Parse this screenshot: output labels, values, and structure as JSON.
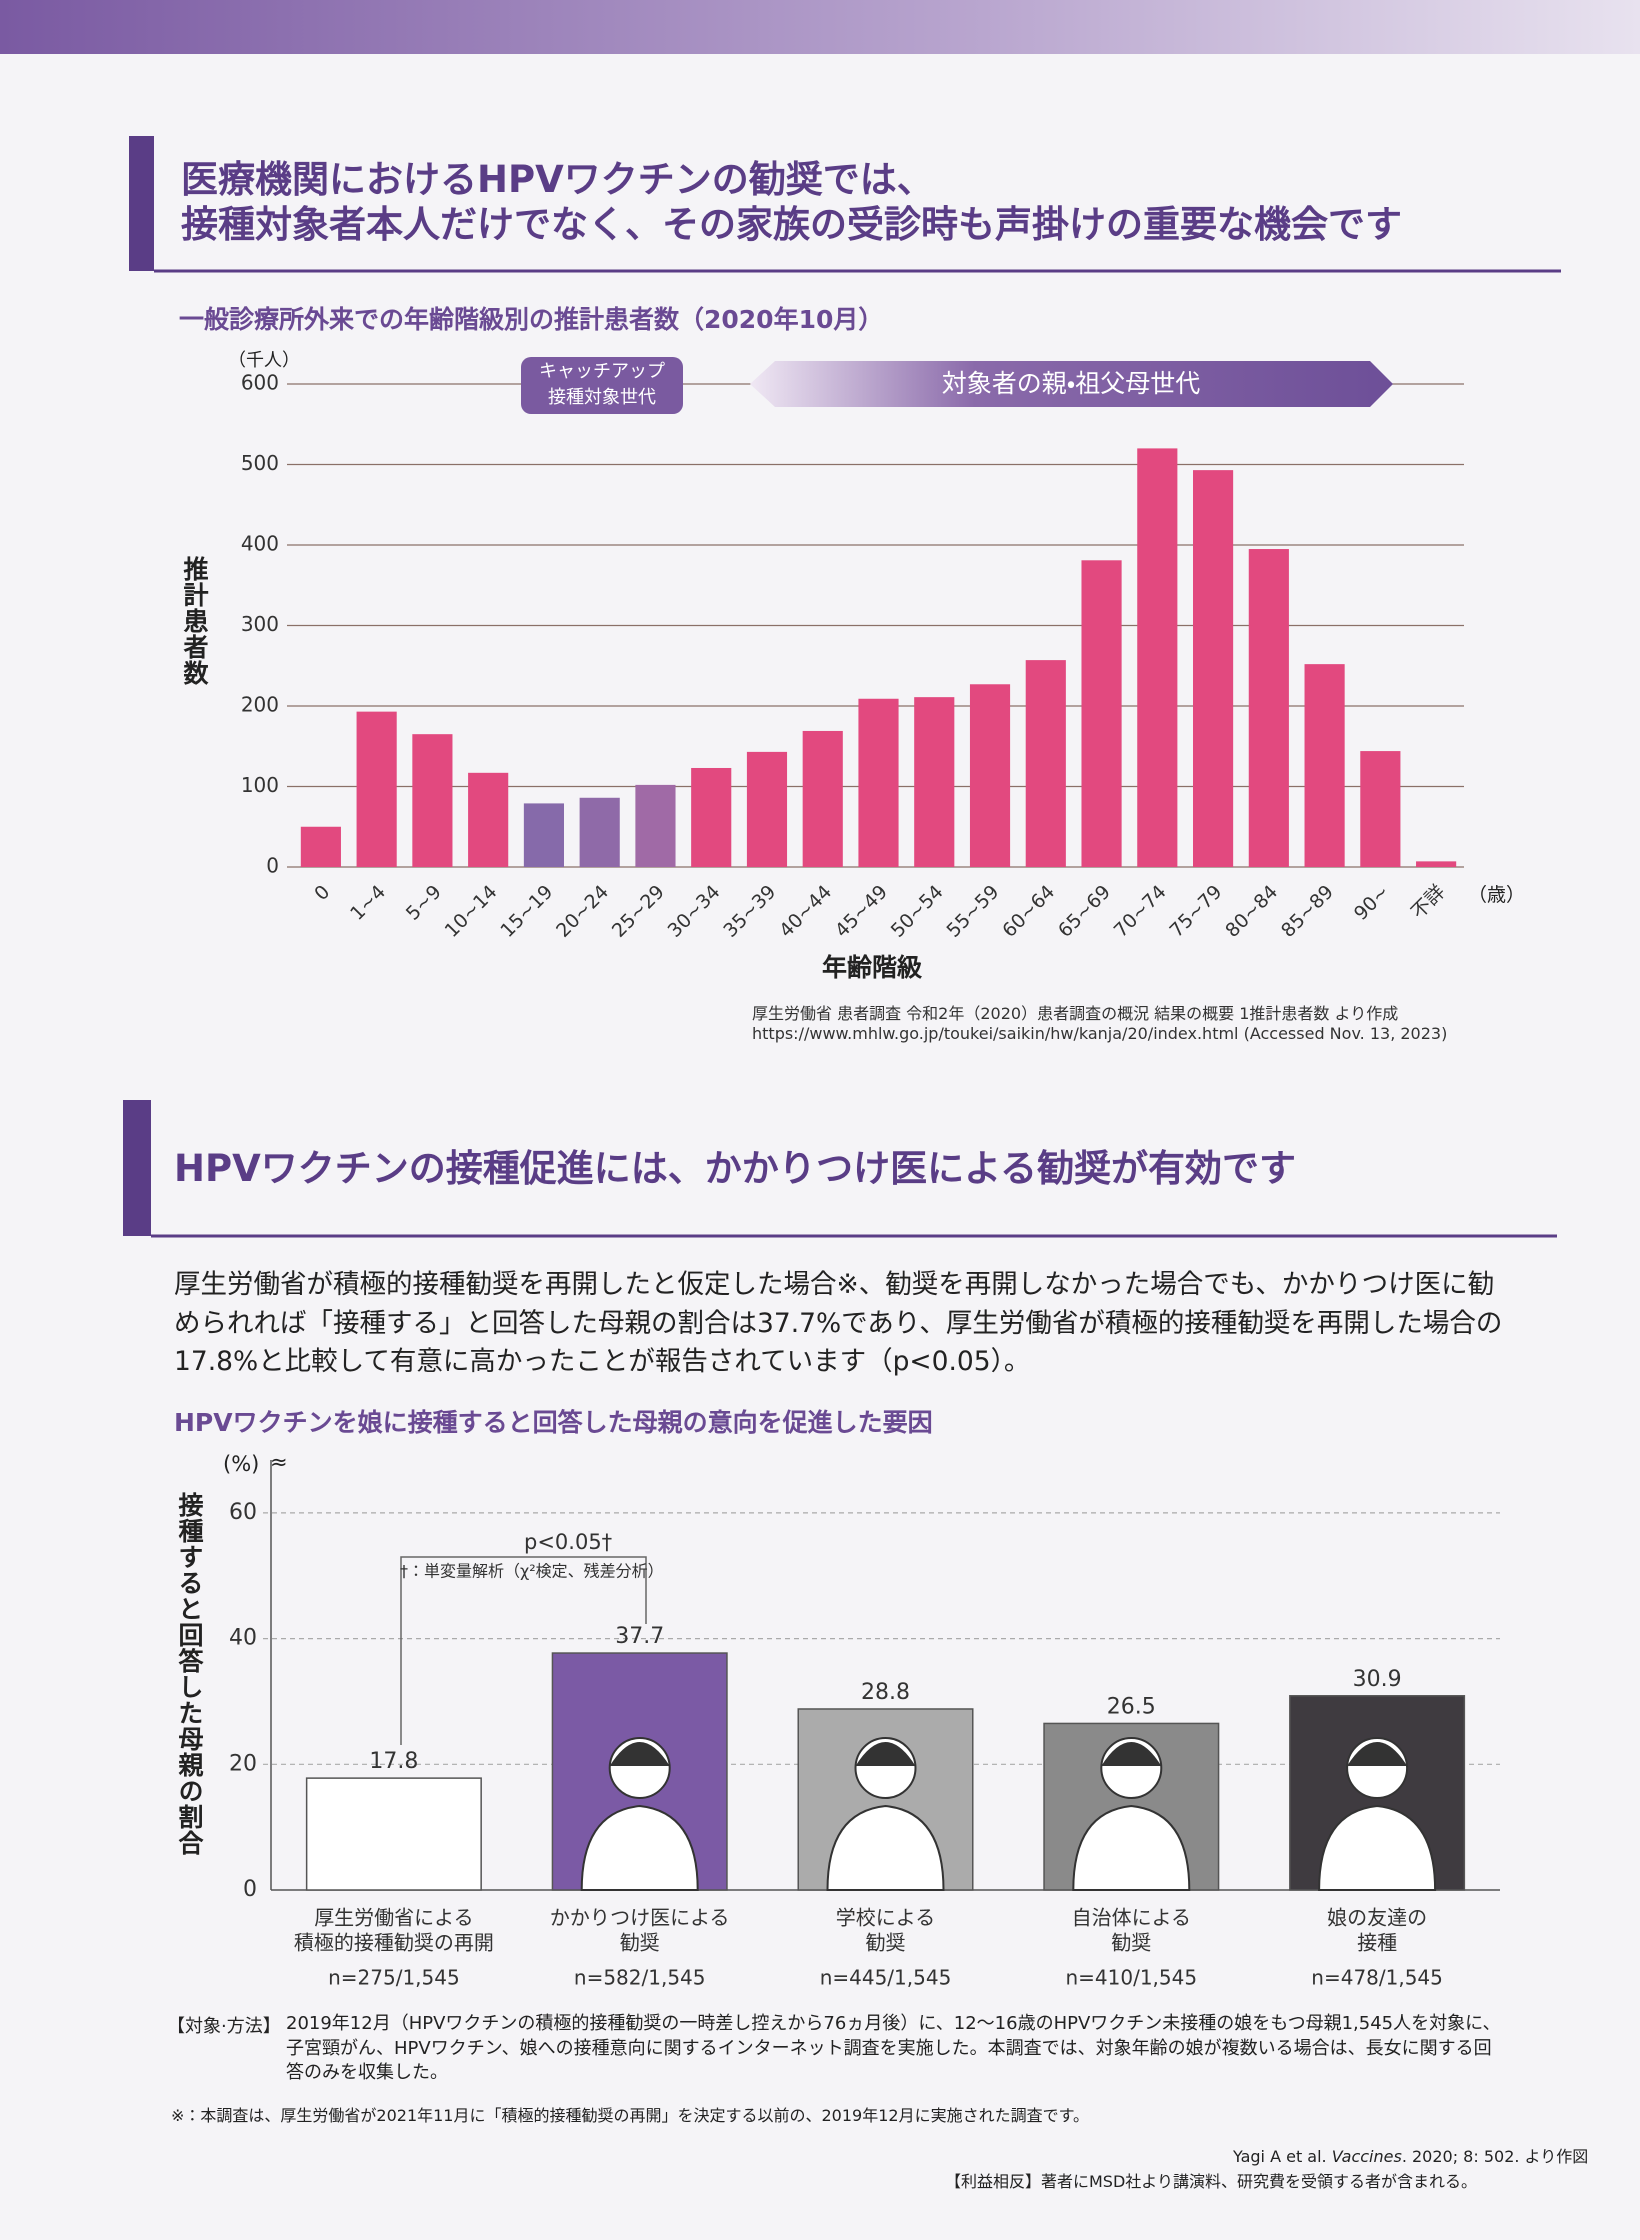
{
  "sections": [
    {
      "heading": [
        "医療機関におけるHPVワクチンの勧奨では、",
        "接種対象者本人だけでなく、その家族の受診時も声掛けの重要な機会です"
      ]
    },
    {
      "heading": [
        "HPVワクチンの接種促進には、かかりつけ医による勧奨が有効です"
      ],
      "paragraph": "厚生労働省が積極的接種勧奨を再開したと仮定した場合※、勧奨を再開しなかった場合でも、かかりつけ医に勧められれば「接種する」と回答した母親の割合は37.7%であり、厚生労働省が積極的接種勧奨を再開した場合の17.8%と比較して有意に高かったことが報告されています（p<0.05）。"
    }
  ],
  "chart_data": [
    {
      "type": "bar",
      "title": "一般診療所外来での年齢階級別の推計患者数（2020年10月）",
      "y_unit": "（千人）",
      "ylabel": "推計患者数",
      "xlabel": "年齢階級",
      "x_unit": "（歳）",
      "categories": [
        "0",
        "1~4",
        "5~9",
        "10~14",
        "15~19",
        "20~24",
        "25~29",
        "30~34",
        "35~39",
        "40~44",
        "45~49",
        "50~54",
        "55~59",
        "60~64",
        "65~69",
        "70~74",
        "75~79",
        "80~84",
        "85~89",
        "90~",
        "不詳"
      ],
      "values": [
        50,
        193,
        165,
        117,
        79,
        86,
        102,
        123,
        143,
        169,
        209,
        211,
        227,
        257,
        381,
        520,
        493,
        395,
        252,
        144,
        7
      ],
      "colors": [
        "#e2497f",
        "#e2497f",
        "#e2497f",
        "#e2497f",
        "#866aaa",
        "#8f6aa8",
        "#a06aa6",
        "#e2497f",
        "#e2497f",
        "#e2497f",
        "#e2497f",
        "#e2497f",
        "#e2497f",
        "#e2497f",
        "#e2497f",
        "#e2497f",
        "#e2497f",
        "#e2497f",
        "#e2497f",
        "#e2497f",
        "#e2497f"
      ],
      "ylim": [
        0,
        600
      ],
      "yticks": [
        0,
        100,
        200,
        300,
        400,
        500,
        600
      ],
      "grid": true,
      "annotations": {
        "catch_up": [
          "キャッチアップ",
          "接種対象世代"
        ],
        "parents": "対象者の親・祖父母世代"
      }
    },
    {
      "type": "bar",
      "title": "HPVワクチンを娘に接種すると回答した母親の意向を促進した要因",
      "y_unit": "(%)",
      "axis_break": "≈",
      "ylabel": "接種すると回答した母親の割合",
      "categories": [
        [
          "厚生労働省による",
          "積極的接種勧奨の再開"
        ],
        [
          "かかりつけ医による",
          "勧奨"
        ],
        [
          "学校による",
          "勧奨"
        ],
        [
          "自治体による",
          "勧奨"
        ],
        [
          "娘の友達の",
          "接種"
        ]
      ],
      "n_labels": [
        "n=275/1,545",
        "n=582/1,545",
        "n=445/1,545",
        "n=410/1,545",
        "n=478/1,545"
      ],
      "values": [
        17.8,
        37.7,
        28.8,
        26.5,
        30.9
      ],
      "colors": [
        "#ffffff",
        "#7b5aa5",
        "#ababab",
        "#8a8a8a",
        "#3f3b40"
      ],
      "ylim": [
        0,
        68
      ],
      "yticks": [
        0,
        20,
        40,
        60
      ],
      "grid": true,
      "annotations": {
        "significance": "p<0.05†",
        "test": "†：単変量解析（χ²検定、残差分析）"
      }
    }
  ],
  "source": [
    "厚生労働省 患者調査 令和2年（2020）患者調査の概況 結果の概要 1推計患者数 より作成",
    "https://www.mhlw.go.jp/toukei/saikin/hw/kanja/20/index.html (Accessed Nov. 13, 2023)"
  ],
  "method": {
    "label": "【対象·方法】",
    "text": "2019年12月（HPVワクチンの積極的接種勧奨の一時差し控えから76ヵ月後）に、12～16歳のHPVワクチン未接種の娘をもつ母親1,545人を対象に、子宮頸がん、HPVワクチン、娘への接種意向に関するインターネット調査を実施した。本調査では、対象年齢の娘が複数いる場合は、長女に関する回答のみを収集した。"
  },
  "note": "※：本調査は、厚生労働省が2021年11月に「積極的接種勧奨の再開」を決定する以前の、2019年12月に実施された調査です。",
  "citation": [
    "Yagi A et al. ",
    "Vaccines",
    ". 2020; 8: 502. より作図"
  ],
  "coi": "【利益相反】著者にMSD社より講演料、研究費を受領する者が含まれる。"
}
